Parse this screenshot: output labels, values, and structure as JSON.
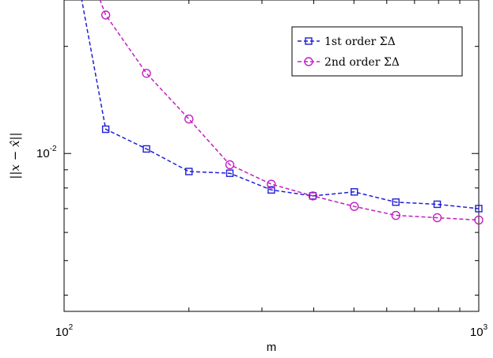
{
  "chart_data": {
    "type": "line",
    "title": "",
    "xlabel": "m",
    "ylabel": "||x − x̂||",
    "x_scale": "log",
    "y_scale": "log",
    "xlim": [
      100,
      1000
    ],
    "ylim": [
      0.0036,
      0.027
    ],
    "x_ticks": [
      {
        "value": 100,
        "base": "10",
        "exp": "2"
      },
      {
        "value": 1000,
        "base": "10",
        "exp": "3"
      }
    ],
    "y_ticks": [
      {
        "value": 0.01,
        "base": "10",
        "exp": "-2"
      }
    ],
    "grid": false,
    "legend_position": "top-right",
    "series": [
      {
        "name": "1st order ΣΔ",
        "color": "#1f1fd6",
        "marker": "square",
        "line_style": "dashed",
        "x": [
          100,
          126,
          158,
          200,
          251,
          316,
          398,
          501,
          631,
          794,
          1000
        ],
        "y": [
          0.05,
          0.0117,
          0.0103,
          0.0089,
          0.0088,
          0.0079,
          0.0076,
          0.0078,
          0.0073,
          0.0072,
          0.007
        ]
      },
      {
        "name": "2nd order ΣΔ",
        "color": "#c020c0",
        "marker": "circle",
        "line_style": "dashed",
        "x": [
          100,
          126,
          158,
          200,
          251,
          316,
          398,
          501,
          631,
          794,
          1000
        ],
        "y": [
          0.05,
          0.0245,
          0.0168,
          0.0125,
          0.0093,
          0.0082,
          0.0076,
          0.0071,
          0.0067,
          0.0066,
          0.0065
        ]
      }
    ]
  }
}
